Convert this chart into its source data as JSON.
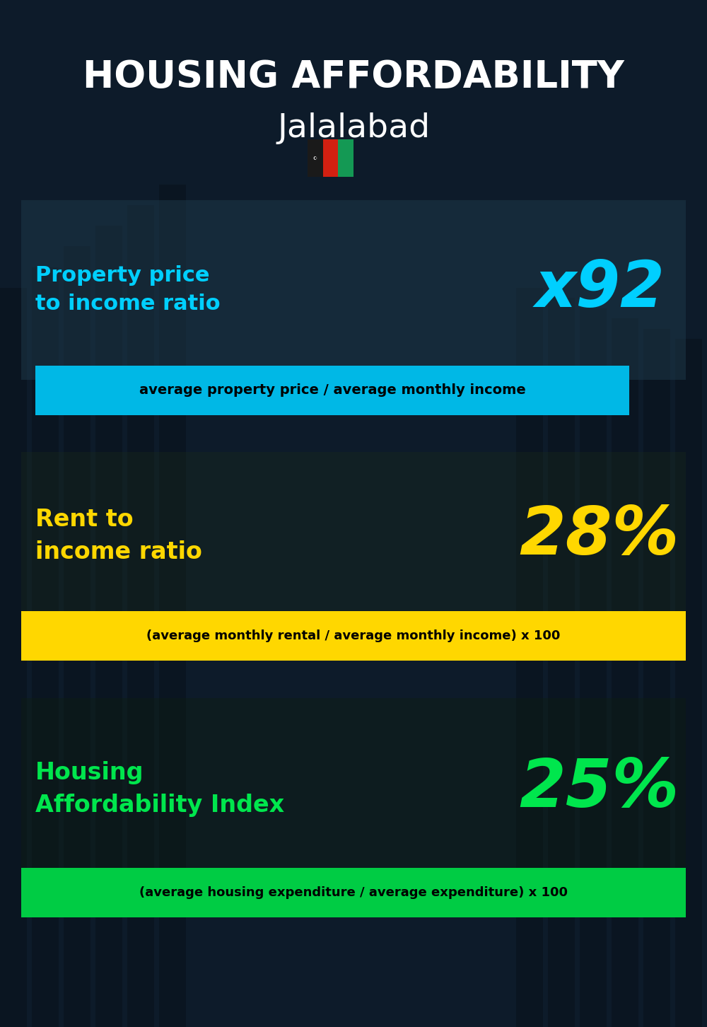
{
  "title_line1": "HOUSING AFFORDABILITY",
  "title_line2": "Jalalabad",
  "bg_color": "#0d1b2a",
  "title_color": "#ffffff",
  "subtitle_color": "#ffffff",
  "section1_label": "Property price\nto income ratio",
  "section1_value": "x92",
  "section1_label_color": "#00cfff",
  "section1_value_color": "#00cfff",
  "section1_banner_text": "average property price / average monthly income",
  "section1_banner_bg": "#00b8e6",
  "section1_banner_text_color": "#000000",
  "section1_overlay_color": "#1a2a3a",
  "section1_overlay_alpha": 0.45,
  "section2_label": "Rent to\nincome ratio",
  "section2_value": "28%",
  "section2_label_color": "#ffd700",
  "section2_value_color": "#ffd700",
  "section2_banner_text": "(average monthly rental / average monthly income) x 100",
  "section2_banner_bg": "#ffd700",
  "section2_banner_text_color": "#000000",
  "section3_label": "Housing\nAffordability Index",
  "section3_value": "25%",
  "section3_label_color": "#00e64d",
  "section3_value_color": "#00e64d",
  "section3_banner_text": "(average housing expenditure / average expenditure) x 100",
  "section3_banner_bg": "#00cc44",
  "section3_banner_text_color": "#000000",
  "flag_black": "#1a1a1a",
  "flag_red": "#d32011",
  "flag_green": "#149954"
}
